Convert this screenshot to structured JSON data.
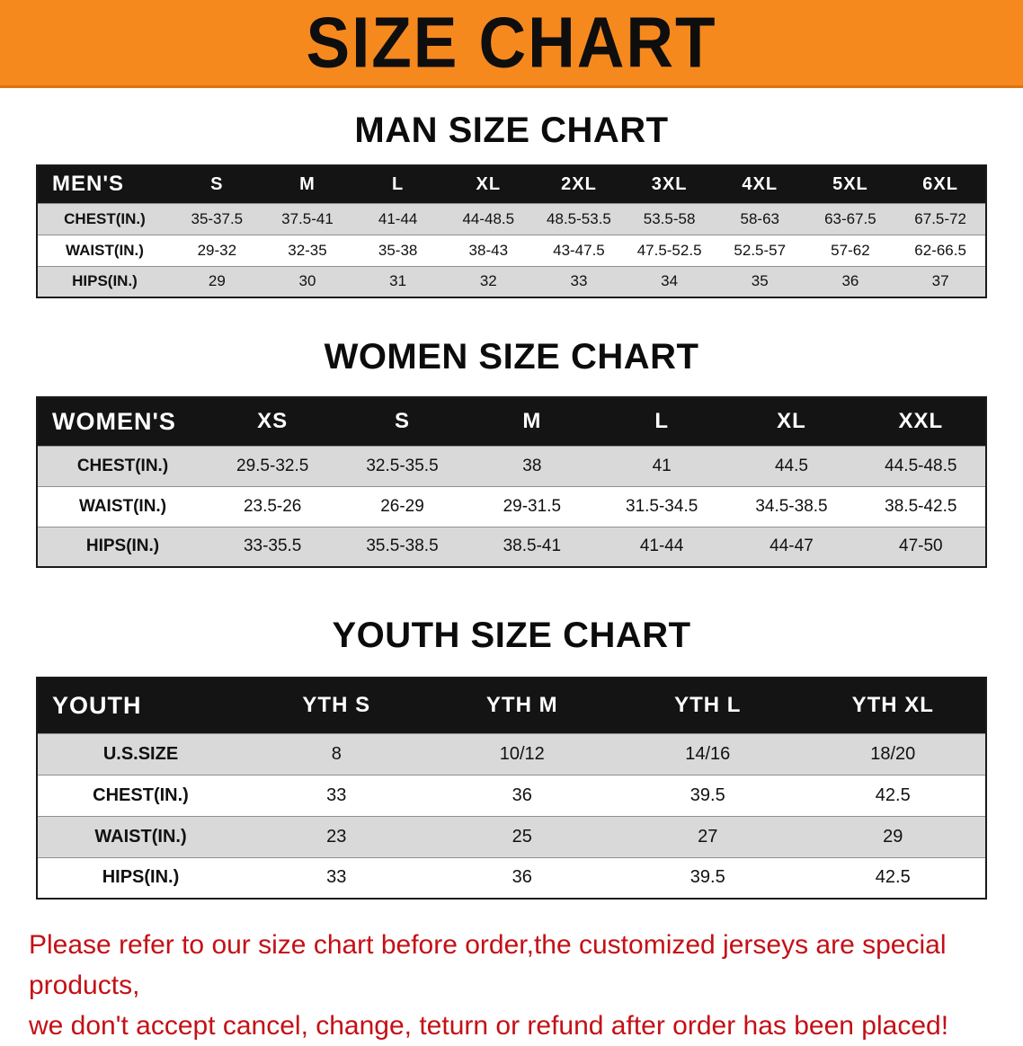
{
  "banner": {
    "title": "SIZE CHART"
  },
  "sections": [
    {
      "id": "men",
      "heading": "MAN SIZE CHART",
      "table": {
        "header": [
          "MEN'S",
          "S",
          "M",
          "L",
          "XL",
          "2XL",
          "3XL",
          "4XL",
          "5XL",
          "6XL"
        ],
        "rows": [
          [
            "CHEST(IN.)",
            "35-37.5",
            "37.5-41",
            "41-44",
            "44-48.5",
            "48.5-53.5",
            "53.5-58",
            "58-63",
            "63-67.5",
            "67.5-72"
          ],
          [
            "WAIST(IN.)",
            "29-32",
            "32-35",
            "35-38",
            "38-43",
            "43-47.5",
            "47.5-52.5",
            "52.5-57",
            "57-62",
            "62-66.5"
          ],
          [
            "HIPS(IN.)",
            "29",
            "30",
            "31",
            "32",
            "33",
            "34",
            "35",
            "36",
            "37"
          ]
        ]
      }
    },
    {
      "id": "women",
      "heading": "WOMEN SIZE CHART",
      "table": {
        "header": [
          "WOMEN'S",
          "XS",
          "S",
          "M",
          "L",
          "XL",
          "XXL"
        ],
        "rows": [
          [
            "CHEST(IN.)",
            "29.5-32.5",
            "32.5-35.5",
            "38",
            "41",
            "44.5",
            "44.5-48.5"
          ],
          [
            "WAIST(IN.)",
            "23.5-26",
            "26-29",
            "29-31.5",
            "31.5-34.5",
            "34.5-38.5",
            "38.5-42.5"
          ],
          [
            "HIPS(IN.)",
            "33-35.5",
            "35.5-38.5",
            "38.5-41",
            "41-44",
            "44-47",
            "47-50"
          ]
        ]
      }
    },
    {
      "id": "youth",
      "heading": "YOUTH SIZE CHART",
      "table": {
        "header": [
          "YOUTH",
          "YTH S",
          "YTH M",
          "YTH L",
          "YTH XL"
        ],
        "rows": [
          [
            "U.S.SIZE",
            "8",
            "10/12",
            "14/16",
            "18/20"
          ],
          [
            "CHEST(IN.)",
            "33",
            "36",
            "39.5",
            "42.5"
          ],
          [
            "WAIST(IN.)",
            "23",
            "25",
            "27",
            "29"
          ],
          [
            "HIPS(IN.)",
            "33",
            "36",
            "39.5",
            "42.5"
          ]
        ]
      }
    }
  ],
  "disclaimer": {
    "line1": "Please refer to our size chart before order,the customized jerseys are special products,",
    "line2": "we don't accept cancel, change, teturn or refund after order has been placed!"
  },
  "colors": {
    "banner_orange": "#f6891e",
    "header_black": "#141414",
    "stripe_gray": "#d9d9d9",
    "disclaimer_red": "#c41016"
  }
}
